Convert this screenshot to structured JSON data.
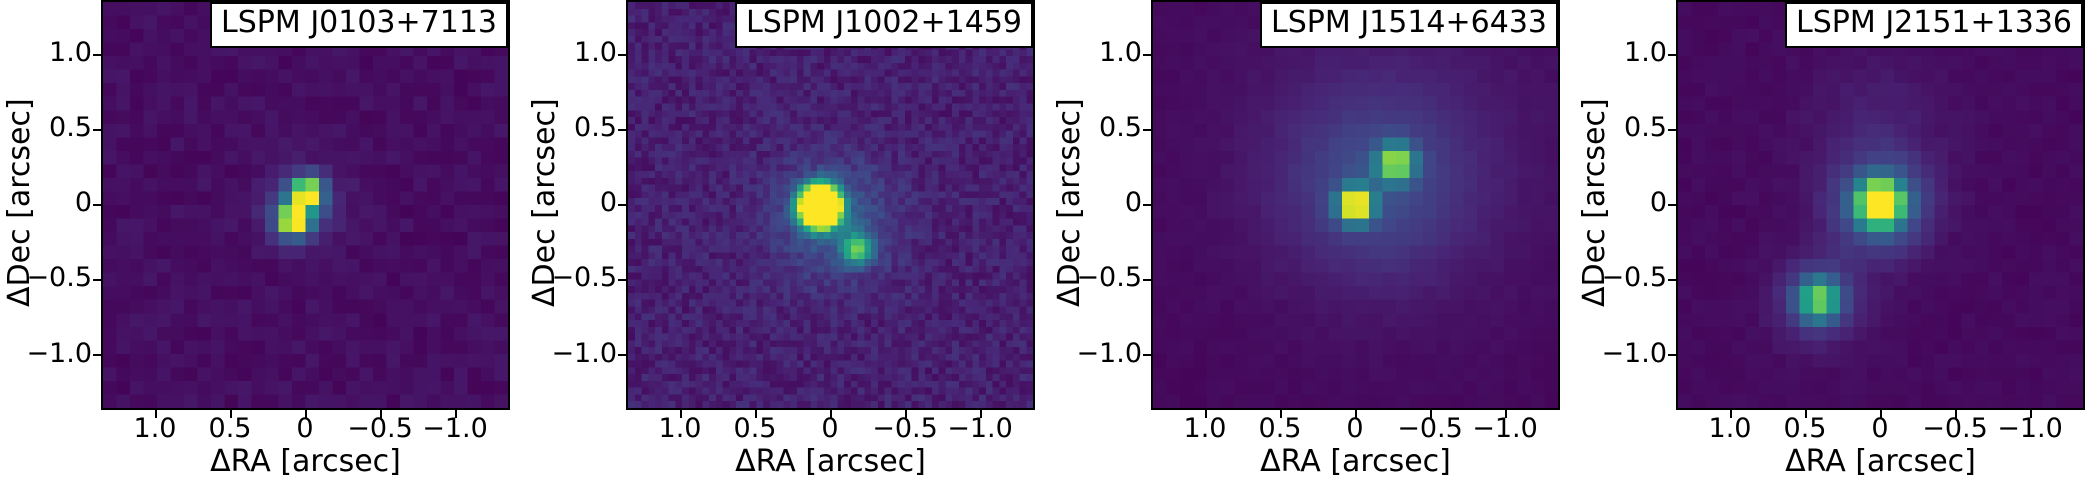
{
  "figure": {
    "background_color": "#ffffff",
    "axis_color": "#000000",
    "colormap": "viridis",
    "colormap_stops": [
      [
        68,
        1,
        84
      ],
      [
        72,
        36,
        117
      ],
      [
        65,
        68,
        135
      ],
      [
        53,
        95,
        141
      ],
      [
        42,
        120,
        142
      ],
      [
        33,
        145,
        140
      ],
      [
        34,
        168,
        132
      ],
      [
        68,
        191,
        112
      ],
      [
        122,
        209,
        81
      ],
      [
        189,
        223,
        38
      ],
      [
        253,
        231,
        37
      ]
    ],
    "x_tick_labels": [
      "1.0",
      "0.5",
      "0",
      "−0.5",
      "−1.0"
    ],
    "y_tick_labels": [
      "1.0",
      "0.5",
      "0",
      "−0.5",
      "−1.0"
    ]
  },
  "chart_data": [
    {
      "type": "heatmap",
      "title": "LSPM J0103+7113",
      "xlabel": "ΔRA [arcsec]",
      "ylabel": "ΔDec [arcsec]",
      "x_ticks": [
        1.0,
        0.5,
        0,
        -0.5,
        -1.0
      ],
      "y_ticks": [
        1.0,
        0.5,
        0,
        -0.5,
        -1.0
      ],
      "xlim": [
        1.35,
        -1.35
      ],
      "ylim": [
        -1.35,
        1.35
      ],
      "grid": 30,
      "background_level": 0.012,
      "noise_level": 0.05,
      "seed": 11,
      "sources": [
        {
          "ra": -0.01,
          "dec": 0.08,
          "amp": 0.95,
          "sigma": 0.068,
          "role": "primary"
        },
        {
          "ra": 0.08,
          "dec": -0.1,
          "amp": 1.0,
          "sigma": 0.07,
          "role": "secondary"
        },
        {
          "ra": 0.03,
          "dec": -0.01,
          "amp": 0.22,
          "sigma": 0.17,
          "role": "halo"
        }
      ]
    },
    {
      "type": "heatmap",
      "title": "LSPM J1002+1459",
      "xlabel": "ΔRA [arcsec]",
      "ylabel": "ΔDec [arcsec]",
      "x_ticks": [
        1.0,
        0.5,
        0,
        -0.5,
        -1.0
      ],
      "y_ticks": [
        1.0,
        0.5,
        0,
        -0.5,
        -1.0
      ],
      "xlim": [
        1.35,
        -1.35
      ],
      "ylim": [
        -1.35,
        1.35
      ],
      "grid": 60,
      "background_level": 0.035,
      "noise_level": 0.105,
      "seed": 22,
      "sources": [
        {
          "ra": 0.07,
          "dec": -0.01,
          "amp": 2.6,
          "sigma": 0.085,
          "role": "primary-saturated"
        },
        {
          "ra": -0.18,
          "dec": -0.29,
          "amp": 0.62,
          "sigma": 0.07,
          "role": "secondary"
        },
        {
          "ra": -0.02,
          "dec": -0.1,
          "amp": 0.2,
          "sigma": 0.28,
          "role": "halo"
        }
      ]
    },
    {
      "type": "heatmap",
      "title": "LSPM J1514+6433",
      "xlabel": "ΔRA [arcsec]",
      "ylabel": "ΔDec [arcsec]",
      "x_ticks": [
        1.0,
        0.5,
        0,
        -0.5,
        -1.0
      ],
      "y_ticks": [
        1.0,
        0.5,
        0,
        -0.5,
        -1.0
      ],
      "xlim": [
        1.35,
        -1.35
      ],
      "ylim": [
        -1.35,
        1.35
      ],
      "grid": 30,
      "background_level": 0.012,
      "noise_level": 0.018,
      "seed": 33,
      "sources": [
        {
          "ra": 0.0,
          "dec": 0.0,
          "amp": 1.05,
          "sigma": 0.075,
          "role": "primary"
        },
        {
          "ra": -0.27,
          "dec": 0.28,
          "amp": 0.75,
          "sigma": 0.082,
          "role": "secondary"
        },
        {
          "ra": -0.13,
          "dec": 0.13,
          "amp": 0.16,
          "sigma": 0.4,
          "role": "halo"
        },
        {
          "ra": -0.25,
          "dec": 0.35,
          "amp": 0.07,
          "sigma": 0.75,
          "role": "wide-halo"
        }
      ]
    },
    {
      "type": "heatmap",
      "title": "LSPM J2151+1336",
      "xlabel": "ΔRA [arcsec]",
      "ylabel": "ΔDec [arcsec]",
      "x_ticks": [
        1.0,
        0.5,
        0,
        -0.5,
        -1.0
      ],
      "y_ticks": [
        1.0,
        0.5,
        0,
        -0.5,
        -1.0
      ],
      "xlim": [
        1.35,
        -1.35
      ],
      "ylim": [
        -1.35,
        1.35
      ],
      "grid": 30,
      "background_level": 0.014,
      "noise_level": 0.025,
      "seed": 44,
      "sources": [
        {
          "ra": 0.0,
          "dec": 0.01,
          "amp": 1.35,
          "sigma": 0.09,
          "role": "primary"
        },
        {
          "ra": 0.0,
          "dec": 0.0,
          "amp": 0.35,
          "sigma": 0.22,
          "role": "primary-halo"
        },
        {
          "ra": 0.41,
          "dec": -0.63,
          "amp": 0.62,
          "sigma": 0.095,
          "role": "secondary"
        },
        {
          "ra": 0.41,
          "dec": -0.63,
          "amp": 0.18,
          "sigma": 0.2,
          "role": "secondary-halo"
        },
        {
          "ra": 0.02,
          "dec": 0.55,
          "amp": 0.06,
          "sigma": 0.32,
          "role": "plume"
        }
      ]
    }
  ]
}
